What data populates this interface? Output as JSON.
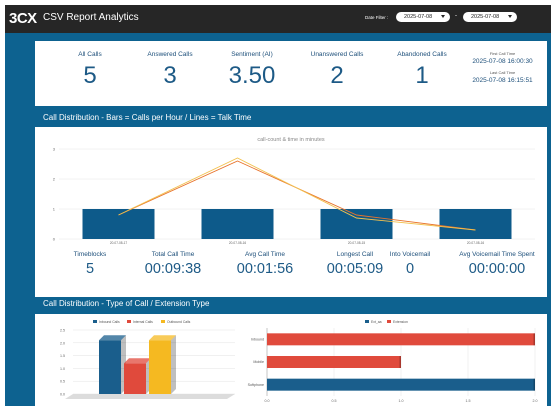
{
  "header": {
    "logo": "3CX",
    "title": "CSV Report Analytics",
    "date_filter_label": "Date Filter :",
    "date_from": "2025-07-08",
    "date_to": "2025-07-08",
    "date_separator": "-"
  },
  "kpis": [
    {
      "label": "All Calls",
      "value": "5"
    },
    {
      "label": "Answered Calls",
      "value": "3"
    },
    {
      "label": "Sentiment (AI)",
      "value": "3.50"
    },
    {
      "label": "Unanswered Calls",
      "value": "2"
    },
    {
      "label": "Abandoned Calls",
      "value": "1"
    }
  ],
  "times": {
    "first_label": "First Call Time",
    "first_value": "2025-07-08 16:00:30",
    "last_label": "Last Call Time",
    "last_value": "2025-07-08 16:15:51"
  },
  "section1_title": "Call Distribution - Bars = Calls per Hour  /  Lines = Talk Time",
  "section2_title": "Call Distribution - Type of Call /  Extension Type",
  "stats": [
    {
      "label": "Timeblocks",
      "value": "5"
    },
    {
      "label": "Total Call Time",
      "value": "00:09:38"
    },
    {
      "label": "Avg Call Time",
      "value": "00:01:56"
    },
    {
      "label": "Longest Call",
      "value": "00:05:09"
    },
    {
      "label": "Into Voicemail",
      "value": "0"
    },
    {
      "label": "Avg Voicemail Time Spent",
      "value": "00:00:00"
    }
  ],
  "chart_data": [
    {
      "type": "bar",
      "title": "call-count & time in minutes",
      "categories": [
        "20-07-08-17",
        "20-07-08-16",
        "20-07-08-15",
        "20-07-08-16"
      ],
      "ylim": [
        0,
        3
      ],
      "yticks": [
        "0",
        "1",
        "2",
        "3"
      ],
      "series": [
        {
          "type": "bar",
          "values": [
            1,
            1,
            1,
            1
          ],
          "color": "#0d5a8a"
        },
        {
          "type": "line",
          "values": [
            0.8,
            2.6,
            0.8,
            0.3
          ],
          "color": "#e8732b"
        },
        {
          "type": "line",
          "values": [
            0.8,
            2.7,
            0.7,
            0.3
          ],
          "color": "#f2c14e"
        }
      ]
    },
    {
      "type": "bar",
      "legend": [
        "Inbound Calls",
        "Internal Calls",
        "Outbound Calls"
      ],
      "categories": [
        "Inbound Calls",
        "Internal Calls",
        "Outbound Calls"
      ],
      "values": [
        2.1,
        1.2,
        2.1
      ],
      "colors": [
        "#1a5e8c",
        "#e04a3c",
        "#f5b921"
      ],
      "ylim": [
        0,
        2.5
      ],
      "yticks": [
        "0.0",
        "0.5",
        "1.0",
        "1.5",
        "2.0",
        "2.5"
      ]
    },
    {
      "type": "bar",
      "orientation": "horizontal",
      "legend": [
        "Ext_aa",
        "Extension"
      ],
      "categories": [
        "Inbound",
        "Mobile",
        "Softphone"
      ],
      "series": [
        {
          "name": "Ext_aa",
          "values": [
            0,
            0,
            2
          ],
          "color": "#1a5e8c"
        },
        {
          "name": "Extension",
          "values": [
            2,
            1,
            0
          ],
          "color": "#e04a3c"
        }
      ],
      "xlim": [
        0,
        2
      ],
      "xticks": [
        "0.0",
        "0.5",
        "1.0",
        "1.5",
        "2.0"
      ]
    }
  ]
}
